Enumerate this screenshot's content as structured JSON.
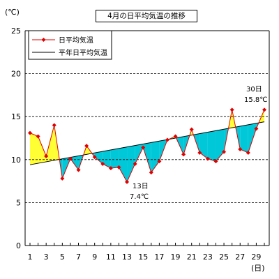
{
  "chart_data": {
    "type": "line",
    "title": "4月の日平均気温の推移",
    "ylabel": "(℃)",
    "xlabel": "(日)",
    "ylim": [
      0,
      25
    ],
    "yticks": [
      "0",
      "5",
      "10",
      "15",
      "20",
      "25"
    ],
    "xticks": [
      "1",
      "3",
      "5",
      "7",
      "9",
      "11",
      "13",
      "15",
      "17",
      "19",
      "21",
      "23",
      "25",
      "27",
      "29"
    ],
    "grid": "dashed-horizontal",
    "legend_position": "top-left",
    "colors": {
      "daily": "#e00000",
      "normal": "#000000",
      "above_fill": "#ffff33",
      "below_fill": "#00c8d8"
    },
    "series": [
      {
        "name": "日平均気温",
        "x": [
          1,
          2,
          3,
          4,
          5,
          6,
          7,
          8,
          9,
          10,
          11,
          12,
          13,
          14,
          15,
          16,
          17,
          18,
          19,
          20,
          21,
          22,
          23,
          24,
          25,
          26,
          27,
          28,
          29,
          30
        ],
        "values": [
          13.1,
          12.7,
          10.4,
          14.0,
          7.8,
          10.1,
          8.8,
          11.6,
          10.3,
          9.5,
          9.0,
          9.1,
          7.4,
          9.5,
          11.4,
          8.5,
          9.8,
          12.3,
          12.7,
          10.6,
          13.5,
          10.8,
          10.1,
          9.8,
          10.9,
          15.8,
          11.2,
          10.8,
          13.6,
          15.8
        ]
      },
      {
        "name": "平年日平均気温",
        "x": [
          1,
          30
        ],
        "values": [
          9.4,
          14.4
        ]
      }
    ],
    "annotations": [
      {
        "day": "13日",
        "value": "7.4℃"
      },
      {
        "day": "30日",
        "value": "15.8℃"
      }
    ]
  }
}
